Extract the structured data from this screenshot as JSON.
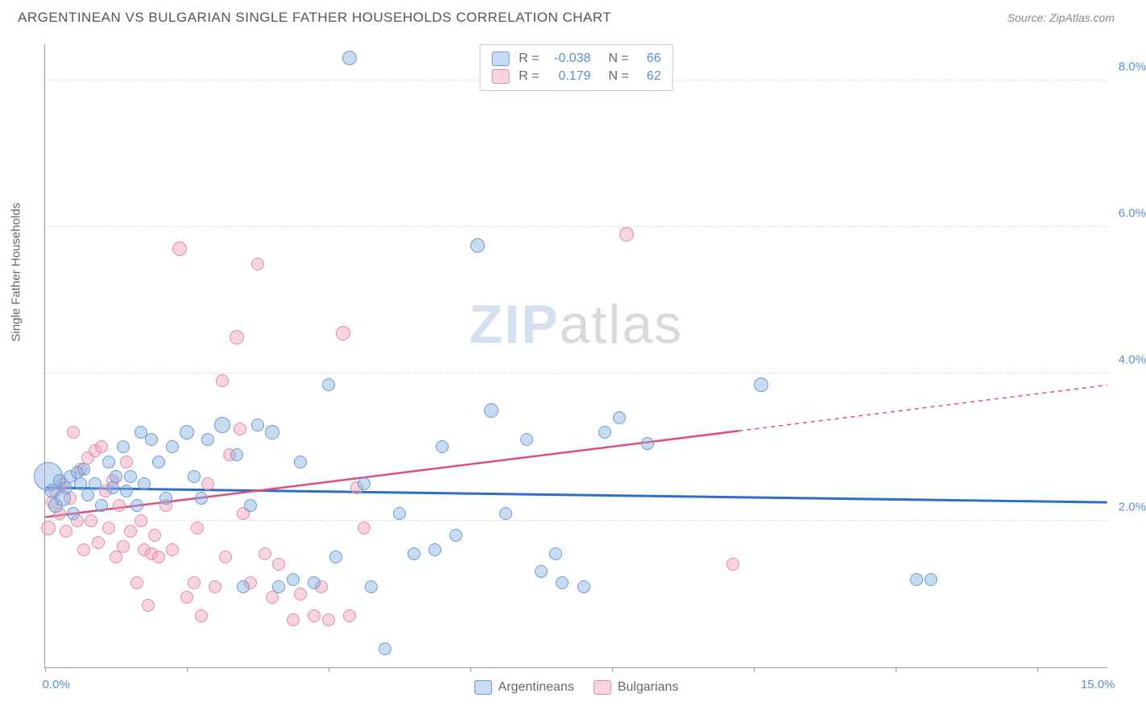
{
  "title": "ARGENTINEAN VS BULGARIAN SINGLE FATHER HOUSEHOLDS CORRELATION CHART",
  "source": "Source: ZipAtlas.com",
  "y_axis_label": "Single Father Households",
  "watermark": {
    "zip": "ZIP",
    "atlas": "atlas"
  },
  "chart": {
    "type": "scatter",
    "xlim": [
      0,
      15
    ],
    "ylim": [
      0,
      8.5
    ],
    "x_ticks": [
      0,
      2,
      4,
      6,
      8,
      10,
      12,
      14
    ],
    "x_tick_labels": {
      "0": "0.0%",
      "15": "15.0%"
    },
    "y_gridlines": [
      2,
      4,
      6,
      8
    ],
    "y_tick_labels": {
      "2": "2.0%",
      "4": "4.0%",
      "6": "6.0%",
      "8": "8.0%"
    },
    "background_color": "#ffffff",
    "grid_color": "#dddddd",
    "axis_color": "#999999",
    "tick_label_color": "#5b8dd6",
    "series": [
      {
        "name": "Argentineans",
        "fill_color": "rgba(135,175,225,0.45)",
        "stroke_color": "#6a9bd6",
        "line_color": "#2d6fc4",
        "line_width": 3,
        "r_value": "-0.038",
        "n_value": "66",
        "regression": {
          "x1": 0,
          "y1": 2.45,
          "x2": 15,
          "y2": 2.25,
          "solid_to_x": 15
        },
        "points": [
          {
            "x": 0.05,
            "y": 2.6,
            "r": 18
          },
          {
            "x": 0.1,
            "y": 2.4,
            "r": 9
          },
          {
            "x": 0.15,
            "y": 2.2,
            "r": 9
          },
          {
            "x": 0.2,
            "y": 2.55,
            "r": 8
          },
          {
            "x": 0.25,
            "y": 2.3,
            "r": 10
          },
          {
            "x": 0.3,
            "y": 2.45,
            "r": 8
          },
          {
            "x": 0.35,
            "y": 2.6,
            "r": 8
          },
          {
            "x": 0.4,
            "y": 2.1,
            "r": 8
          },
          {
            "x": 0.5,
            "y": 2.5,
            "r": 8
          },
          {
            "x": 0.55,
            "y": 2.7,
            "r": 8
          },
          {
            "x": 0.6,
            "y": 2.35,
            "r": 8
          },
          {
            "x": 0.7,
            "y": 2.5,
            "r": 8
          },
          {
            "x": 0.8,
            "y": 2.2,
            "r": 8
          },
          {
            "x": 0.9,
            "y": 2.8,
            "r": 8
          },
          {
            "x": 1.0,
            "y": 2.6,
            "r": 8
          },
          {
            "x": 1.1,
            "y": 3.0,
            "r": 8
          },
          {
            "x": 1.15,
            "y": 2.4,
            "r": 8
          },
          {
            "x": 1.2,
            "y": 2.6,
            "r": 8
          },
          {
            "x": 1.3,
            "y": 2.2,
            "r": 8
          },
          {
            "x": 1.4,
            "y": 2.5,
            "r": 8
          },
          {
            "x": 1.5,
            "y": 3.1,
            "r": 8
          },
          {
            "x": 1.6,
            "y": 2.8,
            "r": 8
          },
          {
            "x": 1.7,
            "y": 2.3,
            "r": 8
          },
          {
            "x": 1.8,
            "y": 3.0,
            "r": 8
          },
          {
            "x": 2.0,
            "y": 3.2,
            "r": 9
          },
          {
            "x": 2.1,
            "y": 2.6,
            "r": 8
          },
          {
            "x": 2.2,
            "y": 2.3,
            "r": 8
          },
          {
            "x": 2.3,
            "y": 3.1,
            "r": 8
          },
          {
            "x": 2.5,
            "y": 3.3,
            "r": 10
          },
          {
            "x": 2.7,
            "y": 2.9,
            "r": 8
          },
          {
            "x": 2.8,
            "y": 1.1,
            "r": 8
          },
          {
            "x": 2.9,
            "y": 2.2,
            "r": 8
          },
          {
            "x": 3.0,
            "y": 3.3,
            "r": 8
          },
          {
            "x": 3.2,
            "y": 3.2,
            "r": 9
          },
          {
            "x": 3.3,
            "y": 1.1,
            "r": 8
          },
          {
            "x": 3.5,
            "y": 1.2,
            "r": 8
          },
          {
            "x": 3.6,
            "y": 2.8,
            "r": 8
          },
          {
            "x": 3.8,
            "y": 1.15,
            "r": 8
          },
          {
            "x": 4.0,
            "y": 3.85,
            "r": 8
          },
          {
            "x": 4.1,
            "y": 1.5,
            "r": 8
          },
          {
            "x": 4.3,
            "y": 8.3,
            "r": 9
          },
          {
            "x": 4.5,
            "y": 2.5,
            "r": 8
          },
          {
            "x": 4.6,
            "y": 1.1,
            "r": 8
          },
          {
            "x": 4.8,
            "y": 0.25,
            "r": 8
          },
          {
            "x": 5.0,
            "y": 2.1,
            "r": 8
          },
          {
            "x": 5.2,
            "y": 1.55,
            "r": 8
          },
          {
            "x": 5.5,
            "y": 1.6,
            "r": 8
          },
          {
            "x": 5.6,
            "y": 3.0,
            "r": 8
          },
          {
            "x": 5.8,
            "y": 1.8,
            "r": 8
          },
          {
            "x": 6.1,
            "y": 5.75,
            "r": 9
          },
          {
            "x": 6.3,
            "y": 3.5,
            "r": 9
          },
          {
            "x": 6.5,
            "y": 2.1,
            "r": 8
          },
          {
            "x": 6.8,
            "y": 3.1,
            "r": 8
          },
          {
            "x": 7.0,
            "y": 1.3,
            "r": 8
          },
          {
            "x": 7.2,
            "y": 1.55,
            "r": 8
          },
          {
            "x": 7.3,
            "y": 1.15,
            "r": 8
          },
          {
            "x": 7.6,
            "y": 1.1,
            "r": 8
          },
          {
            "x": 7.9,
            "y": 3.2,
            "r": 8
          },
          {
            "x": 8.1,
            "y": 3.4,
            "r": 8
          },
          {
            "x": 8.5,
            "y": 3.05,
            "r": 8
          },
          {
            "x": 10.1,
            "y": 3.85,
            "r": 9
          },
          {
            "x": 12.3,
            "y": 1.2,
            "r": 8
          },
          {
            "x": 12.5,
            "y": 1.2,
            "r": 8
          },
          {
            "x": 0.45,
            "y": 2.65,
            "r": 8
          },
          {
            "x": 0.95,
            "y": 2.45,
            "r": 8
          },
          {
            "x": 1.35,
            "y": 3.2,
            "r": 8
          }
        ]
      },
      {
        "name": "Bulgarians",
        "fill_color": "rgba(240,160,185,0.45)",
        "stroke_color": "#e08ca8",
        "line_color": "#e04d7a",
        "line_width": 2.5,
        "r_value": "0.179",
        "n_value": "62",
        "regression": {
          "x1": 0,
          "y1": 2.05,
          "x2": 15,
          "y2": 3.85,
          "solid_to_x": 9.8
        },
        "points": [
          {
            "x": 0.05,
            "y": 1.9,
            "r": 9
          },
          {
            "x": 0.1,
            "y": 2.25,
            "r": 8
          },
          {
            "x": 0.15,
            "y": 2.4,
            "r": 8
          },
          {
            "x": 0.2,
            "y": 2.1,
            "r": 8
          },
          {
            "x": 0.25,
            "y": 2.5,
            "r": 8
          },
          {
            "x": 0.3,
            "y": 1.85,
            "r": 8
          },
          {
            "x": 0.35,
            "y": 2.3,
            "r": 8
          },
          {
            "x": 0.4,
            "y": 3.2,
            "r": 8
          },
          {
            "x": 0.45,
            "y": 2.0,
            "r": 8
          },
          {
            "x": 0.5,
            "y": 2.7,
            "r": 8
          },
          {
            "x": 0.55,
            "y": 1.6,
            "r": 8
          },
          {
            "x": 0.6,
            "y": 2.85,
            "r": 8
          },
          {
            "x": 0.65,
            "y": 2.0,
            "r": 8
          },
          {
            "x": 0.7,
            "y": 2.95,
            "r": 8
          },
          {
            "x": 0.75,
            "y": 1.7,
            "r": 8
          },
          {
            "x": 0.8,
            "y": 3.0,
            "r": 8
          },
          {
            "x": 0.85,
            "y": 2.4,
            "r": 8
          },
          {
            "x": 0.9,
            "y": 1.9,
            "r": 8
          },
          {
            "x": 0.95,
            "y": 2.55,
            "r": 8
          },
          {
            "x": 1.0,
            "y": 1.5,
            "r": 8
          },
          {
            "x": 1.05,
            "y": 2.2,
            "r": 8
          },
          {
            "x": 1.1,
            "y": 1.65,
            "r": 8
          },
          {
            "x": 1.15,
            "y": 2.8,
            "r": 8
          },
          {
            "x": 1.2,
            "y": 1.85,
            "r": 8
          },
          {
            "x": 1.3,
            "y": 1.15,
            "r": 8
          },
          {
            "x": 1.35,
            "y": 2.0,
            "r": 8
          },
          {
            "x": 1.4,
            "y": 1.6,
            "r": 8
          },
          {
            "x": 1.5,
            "y": 1.55,
            "r": 8
          },
          {
            "x": 1.55,
            "y": 1.8,
            "r": 8
          },
          {
            "x": 1.6,
            "y": 1.5,
            "r": 8
          },
          {
            "x": 1.7,
            "y": 2.2,
            "r": 8
          },
          {
            "x": 1.8,
            "y": 1.6,
            "r": 8
          },
          {
            "x": 1.9,
            "y": 5.7,
            "r": 9
          },
          {
            "x": 2.0,
            "y": 0.95,
            "r": 8
          },
          {
            "x": 2.1,
            "y": 1.15,
            "r": 8
          },
          {
            "x": 2.15,
            "y": 1.9,
            "r": 8
          },
          {
            "x": 2.2,
            "y": 0.7,
            "r": 8
          },
          {
            "x": 2.3,
            "y": 2.5,
            "r": 8
          },
          {
            "x": 2.4,
            "y": 1.1,
            "r": 8
          },
          {
            "x": 2.5,
            "y": 3.9,
            "r": 8
          },
          {
            "x": 2.55,
            "y": 1.5,
            "r": 8
          },
          {
            "x": 2.6,
            "y": 2.9,
            "r": 8
          },
          {
            "x": 2.7,
            "y": 4.5,
            "r": 9
          },
          {
            "x": 2.75,
            "y": 3.25,
            "r": 8
          },
          {
            "x": 2.8,
            "y": 2.1,
            "r": 8
          },
          {
            "x": 2.9,
            "y": 1.15,
            "r": 8
          },
          {
            "x": 3.0,
            "y": 5.5,
            "r": 8
          },
          {
            "x": 3.1,
            "y": 1.55,
            "r": 8
          },
          {
            "x": 3.2,
            "y": 0.95,
            "r": 8
          },
          {
            "x": 3.3,
            "y": 1.4,
            "r": 8
          },
          {
            "x": 3.5,
            "y": 0.65,
            "r": 8
          },
          {
            "x": 3.6,
            "y": 1.0,
            "r": 8
          },
          {
            "x": 3.8,
            "y": 0.7,
            "r": 8
          },
          {
            "x": 3.9,
            "y": 1.1,
            "r": 8
          },
          {
            "x": 4.0,
            "y": 0.65,
            "r": 8
          },
          {
            "x": 4.2,
            "y": 4.55,
            "r": 9
          },
          {
            "x": 4.3,
            "y": 0.7,
            "r": 8
          },
          {
            "x": 4.4,
            "y": 2.45,
            "r": 8
          },
          {
            "x": 4.5,
            "y": 1.9,
            "r": 8
          },
          {
            "x": 8.2,
            "y": 5.9,
            "r": 9
          },
          {
            "x": 9.7,
            "y": 1.4,
            "r": 8
          },
          {
            "x": 1.45,
            "y": 0.85,
            "r": 8
          }
        ]
      }
    ]
  },
  "legend_labels": {
    "R": "R =",
    "N": "N ="
  },
  "bottom_legend": [
    "Argentineans",
    "Bulgarians"
  ]
}
